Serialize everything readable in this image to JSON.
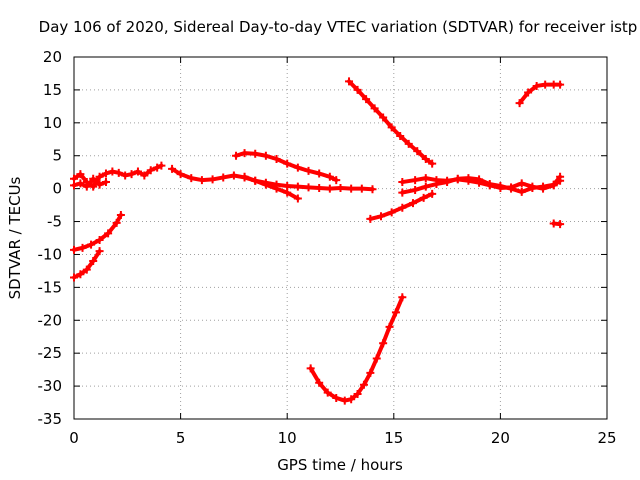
{
  "chart_data": {
    "type": "scatter",
    "title": "Day 106 of 2020, Sidereal Day-to-day VTEC variation (SDTVAR) for receiver istp",
    "xlabel": "GPS time / hours",
    "ylabel": "SDTVAR / TECUs",
    "xlim": [
      0,
      25
    ],
    "ylim": [
      -35,
      20
    ],
    "x_ticks": [
      0,
      5,
      10,
      15,
      20,
      25
    ],
    "y_ticks": [
      -35,
      -30,
      -25,
      -20,
      -15,
      -10,
      -5,
      0,
      5,
      10,
      15,
      20
    ],
    "grid": true,
    "color": "#ff0000",
    "series": [
      {
        "x": [
          0.0,
          0.3,
          0.6,
          0.9,
          1.2,
          1.5,
          1.8,
          2.1,
          2.4,
          2.7,
          3.0,
          3.3,
          3.6,
          3.9,
          4.1
        ],
        "y": [
          1.5,
          2.2,
          1.0,
          0.3,
          1.8,
          2.3,
          2.6,
          2.4,
          2.0,
          2.2,
          2.6,
          2.0,
          2.8,
          3.2,
          3.5
        ]
      },
      {
        "x": [
          0.0,
          0.3,
          0.6,
          0.9,
          1.2,
          1.5
        ],
        "y": [
          0.5,
          0.8,
          0.3,
          1.5,
          0.6,
          1.0
        ]
      },
      {
        "x": [
          0.0,
          0.4,
          0.8,
          1.2,
          1.6,
          2.0,
          2.2
        ],
        "y": [
          -9.3,
          -9.0,
          -8.5,
          -7.8,
          -6.8,
          -5.2,
          -4.0
        ]
      },
      {
        "x": [
          0.0,
          0.3,
          0.6,
          0.9,
          1.2
        ],
        "y": [
          -13.5,
          -13.0,
          -12.3,
          -11.0,
          -9.5
        ]
      },
      {
        "x": [
          4.6,
          5.0,
          5.5,
          6.0,
          6.5,
          7.0,
          7.5,
          8.0,
          8.5,
          9.0,
          9.5,
          10.0,
          10.5,
          11.0,
          11.5,
          12.0,
          12.5,
          13.0,
          13.5,
          14.0
        ],
        "y": [
          3.0,
          2.2,
          1.6,
          1.3,
          1.4,
          1.7,
          2.0,
          1.7,
          1.2,
          0.9,
          0.6,
          0.4,
          0.3,
          0.2,
          0.1,
          0.0,
          0.1,
          0.0,
          0.0,
          -0.1
        ]
      },
      {
        "x": [
          7.6,
          8.0,
          8.5,
          9.0,
          9.5,
          10.0,
          10.5,
          11.0,
          11.5,
          12.0,
          12.3
        ],
        "y": [
          5.0,
          5.4,
          5.3,
          5.0,
          4.5,
          3.8,
          3.2,
          2.7,
          2.3,
          1.8,
          1.3
        ]
      },
      {
        "x": [
          8.0,
          8.5,
          9.0,
          9.5,
          10.0,
          10.5
        ],
        "y": [
          1.8,
          1.2,
          0.6,
          0.0,
          -0.6,
          -1.5
        ]
      },
      {
        "x": [
          12.9,
          13.3,
          13.7,
          14.1,
          14.5,
          14.9,
          15.3,
          15.7,
          16.1,
          16.5,
          16.8
        ],
        "y": [
          16.3,
          15.0,
          13.6,
          12.2,
          10.8,
          9.3,
          8.0,
          6.8,
          5.7,
          4.5,
          3.8
        ]
      },
      {
        "x": [
          11.1,
          11.5,
          11.9,
          12.3,
          12.7,
          13.0,
          13.3,
          13.6,
          13.9,
          14.2,
          14.5,
          14.8,
          15.1,
          15.4
        ],
        "y": [
          -27.3,
          -29.5,
          -31.0,
          -31.8,
          -32.2,
          -32.0,
          -31.2,
          -29.8,
          -28.0,
          -25.8,
          -23.5,
          -21.0,
          -18.8,
          -16.5
        ]
      },
      {
        "x": [
          13.9,
          14.4,
          14.9,
          15.4,
          15.9,
          16.4,
          16.8
        ],
        "y": [
          -4.6,
          -4.2,
          -3.6,
          -2.9,
          -2.2,
          -1.4,
          -0.8
        ]
      },
      {
        "x": [
          15.4,
          16.0,
          16.5,
          17.0,
          17.5,
          18.0,
          18.5,
          19.0,
          19.5,
          20.0,
          20.5,
          21.0,
          21.5,
          22.0,
          22.5,
          22.8
        ],
        "y": [
          1.0,
          1.3,
          1.6,
          1.3,
          1.2,
          1.4,
          1.2,
          0.9,
          0.5,
          0.1,
          0.2,
          0.8,
          0.3,
          0.0,
          0.5,
          1.2
        ]
      },
      {
        "x": [
          15.4,
          16.0,
          16.5,
          17.0,
          17.5,
          18.0,
          18.5,
          19.0,
          19.5,
          20.0,
          20.5,
          21.0,
          21.5,
          22.0,
          22.5,
          22.8
        ],
        "y": [
          -0.6,
          -0.2,
          0.3,
          0.7,
          1.0,
          1.5,
          1.6,
          1.4,
          0.7,
          0.4,
          0.0,
          -0.5,
          0.1,
          0.3,
          0.6,
          1.8
        ]
      },
      {
        "x": [
          20.9,
          21.3,
          21.7,
          22.1,
          22.5,
          22.8
        ],
        "y": [
          13.0,
          14.6,
          15.6,
          15.8,
          15.8,
          15.8
        ]
      },
      {
        "x": [
          22.5,
          22.8
        ],
        "y": [
          -5.3,
          -5.4
        ]
      }
    ]
  }
}
